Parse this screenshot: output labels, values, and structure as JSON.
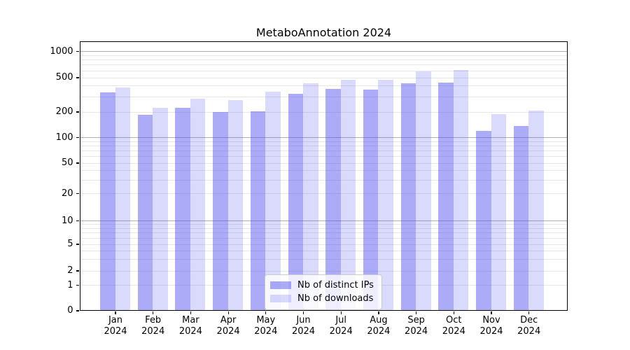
{
  "chart_data": {
    "type": "bar",
    "title": "MetaboAnnotation 2024",
    "months": [
      "Jan",
      "Feb",
      "Mar",
      "Apr",
      "May",
      "Jun",
      "Jul",
      "Aug",
      "Sep",
      "Oct",
      "Nov",
      "Dec"
    ],
    "year": "2024",
    "categories": [
      "Jan 2024",
      "Feb 2024",
      "Mar 2024",
      "Apr 2024",
      "May 2024",
      "Jun 2024",
      "Jul 2024",
      "Aug 2024",
      "Sep 2024",
      "Oct 2024",
      "Nov 2024",
      "Dec 2024"
    ],
    "series": [
      {
        "name": "Nb of distinct IPs",
        "color": "rgba(68,68,238,0.45)",
        "values": [
          330,
          183,
          220,
          195,
          200,
          322,
          365,
          358,
          420,
          433,
          118,
          134
        ]
      },
      {
        "name": "Nb of downloads",
        "color": "rgba(68,68,238,0.20)",
        "values": [
          375,
          218,
          282,
          270,
          335,
          425,
          468,
          460,
          578,
          602,
          186,
          203
        ]
      }
    ],
    "yticks": [
      0,
      1,
      2,
      5,
      10,
      20,
      50,
      100,
      200,
      500,
      1000
    ],
    "scale": "symlog",
    "ylim": [
      0,
      1000
    ],
    "grid": true,
    "legend_position": "lower center",
    "colors": {
      "distinct_ips_rendered": "#aaaaf7",
      "downloads_rendered": "#dadaf8",
      "major_grid": "#b0b0b0",
      "minor_grid": "#e7e7e7",
      "axis": "#000000"
    }
  }
}
